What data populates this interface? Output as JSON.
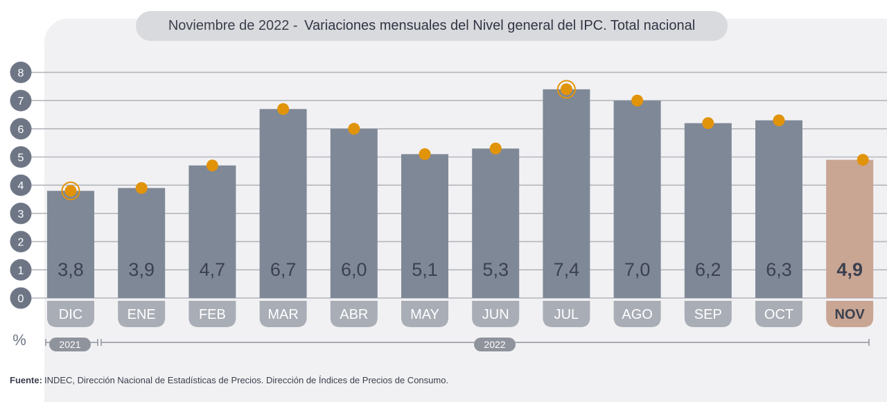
{
  "title": {
    "prefix": "Noviembre de 2022",
    "separator": " - ",
    "main": "Variaciones mensuales del Nivel general del IPC. Total nacional"
  },
  "unit_label": "%",
  "source": {
    "label": "Fuente:",
    "text": "INDEC, Dirección Nacional de Estadísticas de Precios. Dirección de Índices de Precios de Consumo."
  },
  "years": [
    {
      "label": "2021"
    },
    {
      "label": "2022"
    }
  ],
  "colors": {
    "bar": "#7f8896",
    "bar_highlight": "#c9a593",
    "marker": "#e1930a",
    "axis_circle": "#6e7686",
    "grid": "#b4b6bd",
    "month_pill": "#a9adb6",
    "month_pill_highlight": "#c9a593",
    "value_text": "#3b4150",
    "year_pill": "#8f939b"
  },
  "chart_data": {
    "type": "bar",
    "title": "Noviembre de 2022 - Variaciones mensuales del Nivel general del IPC. Total nacional",
    "xlabel": "",
    "ylabel": "%",
    "ylim": [
      0,
      8
    ],
    "yticks": [
      0,
      1,
      2,
      3,
      4,
      5,
      6,
      7,
      8
    ],
    "grid": true,
    "categories": [
      "DIC",
      "ENE",
      "FEB",
      "MAR",
      "ABR",
      "MAY",
      "JUN",
      "JUL",
      "AGO",
      "SEP",
      "OCT",
      "NOV"
    ],
    "values": [
      3.8,
      3.9,
      4.7,
      6.7,
      6.0,
      5.1,
      5.3,
      7.4,
      7.0,
      6.2,
      6.3,
      4.9
    ],
    "value_labels": [
      "3,8",
      "3,9",
      "4,7",
      "6,7",
      "6,0",
      "5,1",
      "5,3",
      "7,4",
      "7,0",
      "6,2",
      "6,3",
      "4,9"
    ],
    "highlighted": "NOV",
    "ringed_markers": [
      "DIC",
      "JUL"
    ],
    "year_groups": [
      {
        "label": "2021",
        "categories": [
          "DIC"
        ]
      },
      {
        "label": "2022",
        "categories": [
          "ENE",
          "FEB",
          "MAR",
          "ABR",
          "MAY",
          "JUN",
          "JUL",
          "AGO",
          "SEP",
          "OCT",
          "NOV"
        ]
      }
    ]
  }
}
